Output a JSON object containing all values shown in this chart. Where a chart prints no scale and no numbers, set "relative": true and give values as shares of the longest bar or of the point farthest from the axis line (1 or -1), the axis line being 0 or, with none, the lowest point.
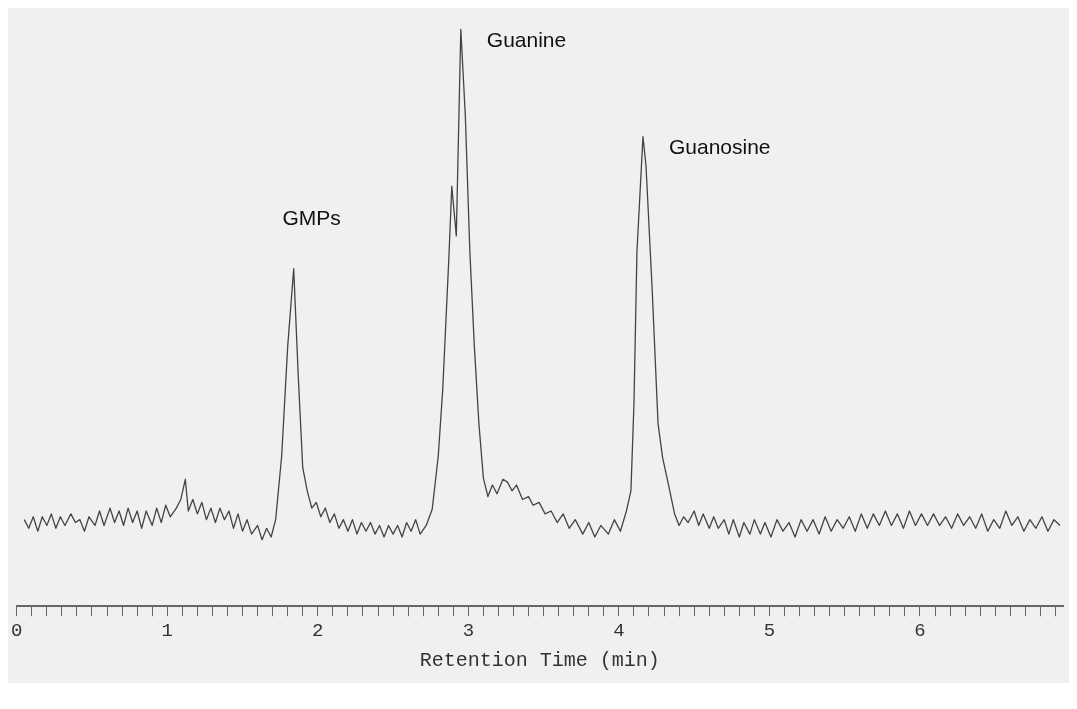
{
  "chart_data": {
    "type": "line",
    "relative": true,
    "xlabel": "Retention Time (min)",
    "color": "#444444",
    "marker": "none",
    "line_style": "solid",
    "grid": false,
    "legend": false,
    "tick_labels": "x",
    "xlim": [
      0,
      6.95
    ],
    "xticks": [
      0,
      {
        "value": 0.1,
        "label": null
      },
      {
        "value": 0.2,
        "label": null
      },
      {
        "value": 0.3,
        "label": null
      },
      {
        "value": 0.4,
        "label": null
      },
      {
        "value": 0.5,
        "label": null
      },
      {
        "value": 0.6,
        "label": null
      },
      {
        "value": 0.7,
        "label": null
      },
      {
        "value": 0.8,
        "label": null
      },
      {
        "value": 0.9,
        "label": null
      },
      1,
      {
        "value": 1.1,
        "label": null
      },
      {
        "value": 1.2,
        "label": null
      },
      {
        "value": 1.3,
        "label": null
      },
      {
        "value": 1.4,
        "label": null
      },
      {
        "value": 1.5,
        "label": null
      },
      {
        "value": 1.6,
        "label": null
      },
      {
        "value": 1.7,
        "label": null
      },
      {
        "value": 1.8,
        "label": null
      },
      {
        "value": 1.9,
        "label": null
      },
      2,
      {
        "value": 2.1,
        "label": null
      },
      {
        "value": 2.2,
        "label": null
      },
      {
        "value": 2.3,
        "label": null
      },
      {
        "value": 2.4,
        "label": null
      },
      {
        "value": 2.5,
        "label": null
      },
      {
        "value": 2.6,
        "label": null
      },
      {
        "value": 2.7,
        "label": null
      },
      {
        "value": 2.8,
        "label": null
      },
      {
        "value": 2.9,
        "label": null
      },
      3,
      {
        "value": 3.1,
        "label": null
      },
      {
        "value": 3.2,
        "label": null
      },
      {
        "value": 3.3,
        "label": null
      },
      {
        "value": 3.4,
        "label": null
      },
      {
        "value": 3.5,
        "label": null
      },
      {
        "value": 3.6,
        "label": null
      },
      {
        "value": 3.7,
        "label": null
      },
      {
        "value": 3.8,
        "label": null
      },
      {
        "value": 3.9,
        "label": null
      },
      4,
      {
        "value": 4.1,
        "label": null
      },
      {
        "value": 4.2,
        "label": null
      },
      {
        "value": 4.3,
        "label": null
      },
      {
        "value": 4.4,
        "label": null
      },
      {
        "value": 4.5,
        "label": null
      },
      {
        "value": 4.6,
        "label": null
      },
      {
        "value": 4.7,
        "label": null
      },
      {
        "value": 4.8,
        "label": null
      },
      {
        "value": 4.9,
        "label": null
      },
      5,
      {
        "value": 5.1,
        "label": null
      },
      {
        "value": 5.2,
        "label": null
      },
      {
        "value": 5.3,
        "label": null
      },
      {
        "value": 5.4,
        "label": null
      },
      {
        "value": 5.5,
        "label": null
      },
      {
        "value": 5.6,
        "label": null
      },
      {
        "value": 5.7,
        "label": null
      },
      {
        "value": 5.8,
        "label": null
      },
      {
        "value": 5.9,
        "label": null
      },
      6,
      {
        "value": 6.1,
        "label": null
      },
      {
        "value": 6.2,
        "label": null
      },
      {
        "value": 6.3,
        "label": null
      },
      {
        "value": 6.4,
        "label": null
      },
      {
        "value": 6.5,
        "label": null
      },
      {
        "value": 6.6,
        "label": null
      },
      {
        "value": 6.7,
        "label": null
      },
      {
        "value": 6.8,
        "label": null
      },
      {
        "value": 6.9,
        "label": null
      }
    ],
    "annotations": [
      {
        "text": "GMPs",
        "x": 1.84,
        "y": 0.585
      },
      {
        "text": "Guanine",
        "x": 2.95,
        "y": 1
      },
      {
        "text": "Guanosine",
        "x": 4.16,
        "y": 0.814
      }
    ],
    "x": [
      0.05,
      0.08,
      0.11,
      0.14,
      0.17,
      0.2,
      0.23,
      0.26,
      0.29,
      0.32,
      0.36,
      0.39,
      0.42,
      0.45,
      0.48,
      0.52,
      0.55,
      0.58,
      0.62,
      0.65,
      0.68,
      0.71,
      0.74,
      0.77,
      0.8,
      0.83,
      0.86,
      0.9,
      0.93,
      0.96,
      0.99,
      1.02,
      1.06,
      1.09,
      1.12,
      1.14,
      1.17,
      1.2,
      1.23,
      1.26,
      1.29,
      1.32,
      1.35,
      1.38,
      1.41,
      1.44,
      1.47,
      1.5,
      1.53,
      1.56,
      1.6,
      1.63,
      1.66,
      1.69,
      1.72,
      1.76,
      1.8,
      1.84,
      1.87,
      1.9,
      1.93,
      1.96,
      1.99,
      2.02,
      2.05,
      2.08,
      2.11,
      2.14,
      2.17,
      2.2,
      2.23,
      2.26,
      2.29,
      2.32,
      2.35,
      2.38,
      2.41,
      2.44,
      2.47,
      2.5,
      2.53,
      2.56,
      2.59,
      2.62,
      2.65,
      2.68,
      2.72,
      2.76,
      2.8,
      2.83,
      2.87,
      2.89,
      2.92,
      2.95,
      2.98,
      3.01,
      3.04,
      3.07,
      3.1,
      3.13,
      3.16,
      3.19,
      3.23,
      3.26,
      3.29,
      3.32,
      3.36,
      3.4,
      3.43,
      3.47,
      3.51,
      3.55,
      3.59,
      3.63,
      3.67,
      3.71,
      3.76,
      3.8,
      3.84,
      3.88,
      3.93,
      3.97,
      4.01,
      4.05,
      4.08,
      4.1,
      4.12,
      4.16,
      4.18,
      4.22,
      4.26,
      4.29,
      4.33,
      4.37,
      4.4,
      4.43,
      4.46,
      4.5,
      4.53,
      4.56,
      4.6,
      4.63,
      4.66,
      4.7,
      4.73,
      4.76,
      4.8,
      4.83,
      4.87,
      4.9,
      4.94,
      4.97,
      5.01,
      5.05,
      5.09,
      5.13,
      5.17,
      5.21,
      5.25,
      5.29,
      5.33,
      5.37,
      5.41,
      5.45,
      5.49,
      5.53,
      5.57,
      5.61,
      5.65,
      5.69,
      5.73,
      5.77,
      5.81,
      5.85,
      5.89,
      5.93,
      5.97,
      6.01,
      6.05,
      6.09,
      6.13,
      6.17,
      6.21,
      6.25,
      6.29,
      6.33,
      6.37,
      6.41,
      6.45,
      6.49,
      6.53,
      6.57,
      6.61,
      6.65,
      6.69,
      6.73,
      6.77,
      6.81,
      6.85,
      6.89,
      6.93
    ],
    "values": [
      0.15,
      0.135,
      0.155,
      0.13,
      0.155,
      0.14,
      0.16,
      0.135,
      0.155,
      0.14,
      0.16,
      0.145,
      0.15,
      0.13,
      0.155,
      0.14,
      0.165,
      0.14,
      0.17,
      0.145,
      0.165,
      0.14,
      0.17,
      0.145,
      0.165,
      0.135,
      0.165,
      0.14,
      0.17,
      0.145,
      0.175,
      0.155,
      0.17,
      0.185,
      0.22,
      0.165,
      0.185,
      0.16,
      0.18,
      0.15,
      0.17,
      0.145,
      0.17,
      0.15,
      0.165,
      0.135,
      0.16,
      0.13,
      0.15,
      0.125,
      0.14,
      0.115,
      0.135,
      0.12,
      0.15,
      0.26,
      0.45,
      0.585,
      0.4,
      0.24,
      0.2,
      0.17,
      0.18,
      0.155,
      0.17,
      0.145,
      0.16,
      0.135,
      0.15,
      0.13,
      0.15,
      0.125,
      0.145,
      0.13,
      0.145,
      0.125,
      0.14,
      0.12,
      0.14,
      0.125,
      0.14,
      0.12,
      0.145,
      0.13,
      0.15,
      0.125,
      0.14,
      0.168,
      0.26,
      0.376,
      0.6,
      0.728,
      0.642,
      1,
      0.85,
      0.615,
      0.45,
      0.317,
      0.222,
      0.19,
      0.21,
      0.195,
      0.22,
      0.215,
      0.2,
      0.21,
      0.185,
      0.19,
      0.175,
      0.18,
      0.16,
      0.165,
      0.145,
      0.16,
      0.135,
      0.15,
      0.125,
      0.145,
      0.12,
      0.14,
      0.125,
      0.15,
      0.13,
      0.165,
      0.2,
      0.35,
      0.615,
      0.814,
      0.764,
      0.555,
      0.317,
      0.258,
      0.21,
      0.16,
      0.14,
      0.155,
      0.145,
      0.165,
      0.14,
      0.16,
      0.135,
      0.155,
      0.135,
      0.15,
      0.125,
      0.15,
      0.12,
      0.145,
      0.125,
      0.15,
      0.125,
      0.145,
      0.12,
      0.15,
      0.13,
      0.145,
      0.12,
      0.15,
      0.13,
      0.15,
      0.125,
      0.155,
      0.13,
      0.15,
      0.135,
      0.155,
      0.13,
      0.16,
      0.135,
      0.16,
      0.14,
      0.165,
      0.14,
      0.16,
      0.135,
      0.165,
      0.14,
      0.16,
      0.14,
      0.16,
      0.14,
      0.155,
      0.135,
      0.16,
      0.14,
      0.155,
      0.135,
      0.16,
      0.13,
      0.15,
      0.135,
      0.165,
      0.14,
      0.155,
      0.13,
      0.15,
      0.135,
      0.155,
      0.13,
      0.15,
      0.14
    ]
  }
}
